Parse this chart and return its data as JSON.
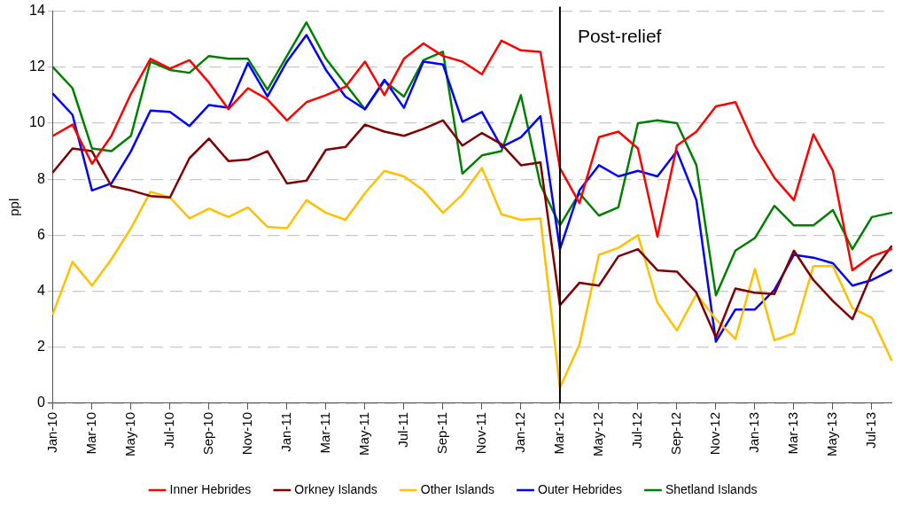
{
  "chart_data": {
    "type": "line",
    "ylabel": "ppl",
    "categories": [
      "Jan-10",
      null,
      "Mar-10",
      null,
      "May-10",
      null,
      "Jul-10",
      null,
      "Sep-10",
      null,
      "Nov-10",
      null,
      "Jan-11",
      null,
      "Mar-11",
      null,
      "May-11",
      null,
      "Jul-11",
      null,
      "Sep-11",
      null,
      "Nov-11",
      null,
      "Jan-12",
      null,
      "Mar-12",
      null,
      "May-12",
      null,
      "Jul-12",
      null,
      "Sep-12",
      null,
      "Nov-12",
      null,
      "Jan-13",
      null,
      "Mar-13",
      null,
      "May-13",
      null,
      "Jul-13",
      null
    ],
    "series": [
      {
        "name": "Inner Hebrides",
        "color": "#ff0000",
        "values": [
          9.55,
          9.95,
          8.55,
          9.55,
          11.05,
          12.3,
          11.95,
          12.25,
          11.45,
          10.5,
          11.25,
          10.85,
          10.1,
          10.75,
          11.0,
          11.3,
          12.2,
          11.0,
          12.3,
          12.85,
          12.4,
          12.2,
          11.75,
          12.95,
          12.6,
          12.55,
          8.4,
          7.15,
          9.5,
          9.7,
          9.1,
          5.95,
          9.2,
          9.7,
          10.6,
          10.75,
          9.2,
          8.05,
          7.25,
          9.6,
          8.3,
          4.75,
          5.25,
          5.5
        ]
      },
      {
        "name": "Orkney Islands",
        "color": "#7f0000",
        "values": [
          8.25,
          9.1,
          9.0,
          7.75,
          7.6,
          7.4,
          7.35,
          8.75,
          9.45,
          8.65,
          8.7,
          9.0,
          7.85,
          7.95,
          9.05,
          9.15,
          9.95,
          9.7,
          9.55,
          9.8,
          10.1,
          9.2,
          9.65,
          9.25,
          8.5,
          8.6,
          3.5,
          4.3,
          4.2,
          5.25,
          5.5,
          4.75,
          4.7,
          3.95,
          2.35,
          4.1,
          3.95,
          3.9,
          5.45,
          4.4,
          3.65,
          3.0,
          4.65,
          5.6
        ]
      },
      {
        "name": "Other Islands",
        "color": "#ffc000",
        "values": [
          3.2,
          5.05,
          4.2,
          5.15,
          6.25,
          7.55,
          7.35,
          6.6,
          6.95,
          6.65,
          7.0,
          6.3,
          6.25,
          7.25,
          6.8,
          6.55,
          7.5,
          8.3,
          8.1,
          7.6,
          6.8,
          7.45,
          8.4,
          6.75,
          6.55,
          6.6,
          0.55,
          2.1,
          5.3,
          5.55,
          6.0,
          3.6,
          2.6,
          3.9,
          3.0,
          2.3,
          4.8,
          2.25,
          2.5,
          4.9,
          4.9,
          3.4,
          3.05,
          1.55
        ]
      },
      {
        "name": "Outer Hebrides",
        "color": "#0000ff",
        "values": [
          11.05,
          10.3,
          7.6,
          7.85,
          9.0,
          10.45,
          10.4,
          9.9,
          10.65,
          10.55,
          12.15,
          10.95,
          12.2,
          13.15,
          11.9,
          10.95,
          10.5,
          11.55,
          10.55,
          12.2,
          12.1,
          10.05,
          10.4,
          9.15,
          9.5,
          10.25,
          5.5,
          7.6,
          8.5,
          8.1,
          8.3,
          8.1,
          9.0,
          7.25,
          2.2,
          3.35,
          3.35,
          4.05,
          5.3,
          5.2,
          5.0,
          4.2,
          4.4,
          4.75
        ]
      },
      {
        "name": "Shetland Islands",
        "color": "#008000",
        "values": [
          12.0,
          11.25,
          9.1,
          9.0,
          9.55,
          12.2,
          11.9,
          11.8,
          12.4,
          12.3,
          12.3,
          11.2,
          12.4,
          13.6,
          12.3,
          11.4,
          10.5,
          11.5,
          10.95,
          12.25,
          12.55,
          8.2,
          8.85,
          9.0,
          11.0,
          7.8,
          6.35,
          7.5,
          6.7,
          7.0,
          10.0,
          10.1,
          10.0,
          8.5,
          3.85,
          5.45,
          5.9,
          7.05,
          6.35,
          6.35,
          6.9,
          5.5,
          6.65,
          6.8
        ]
      }
    ],
    "ylim": [
      0,
      14
    ],
    "yticks": [
      0,
      2,
      4,
      6,
      8,
      10,
      12,
      14
    ],
    "grid": "y",
    "legend": "bottom",
    "marker": "none",
    "line_style": "solid",
    "ref_lines": [
      {
        "axis": "x",
        "value": "Mar-12",
        "label": "Post-relief",
        "color": "#000000"
      }
    ]
  }
}
